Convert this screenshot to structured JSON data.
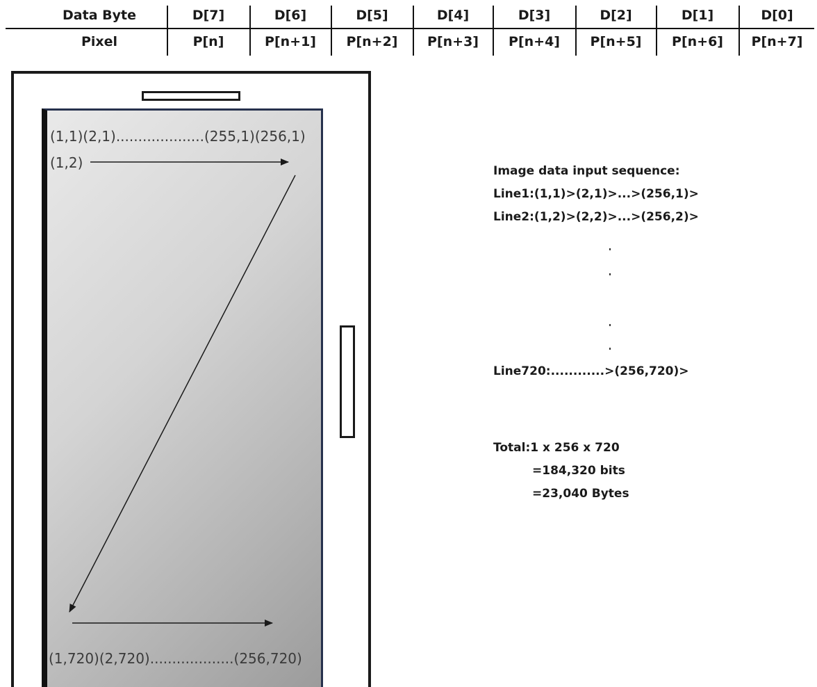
{
  "table": {
    "header_label": "Data Byte",
    "pixel_label": "Pixel",
    "columns": [
      {
        "bit": "D[7]",
        "pixel": "P[n]"
      },
      {
        "bit": "D[6]",
        "pixel": "P[n+1]"
      },
      {
        "bit": "D[5]",
        "pixel": "P[n+2]"
      },
      {
        "bit": "D[4]",
        "pixel": "P[n+3]"
      },
      {
        "bit": "D[3]",
        "pixel": "P[n+4]"
      },
      {
        "bit": "D[2]",
        "pixel": "P[n+5]"
      },
      {
        "bit": "D[1]",
        "pixel": "P[n+6]"
      },
      {
        "bit": "D[0]",
        "pixel": "P[n+7]"
      }
    ]
  },
  "screen": {
    "top_row": "(1,1)(2,1)....................(255,1)(256,1)",
    "second_row_start": "(1,2)",
    "bottom_row": "(1,720)(2,720)...................(256,720)"
  },
  "sequence": {
    "title": "Image data input sequence:",
    "line1": "Line1:(1,1)>(2,1)>...>(256,1)>",
    "line2": "Line2:(1,2)>(2,2)>...>(256,2)>",
    "last_line": "Line720:............>(256,720)>"
  },
  "total": {
    "line1": "Total:1 x 256 x 720",
    "line2": "=184,320 bits",
    "line3": "=23,040 Bytes"
  },
  "colors": {
    "screen_border": "#26314d",
    "outline": "#1a1a1a"
  }
}
